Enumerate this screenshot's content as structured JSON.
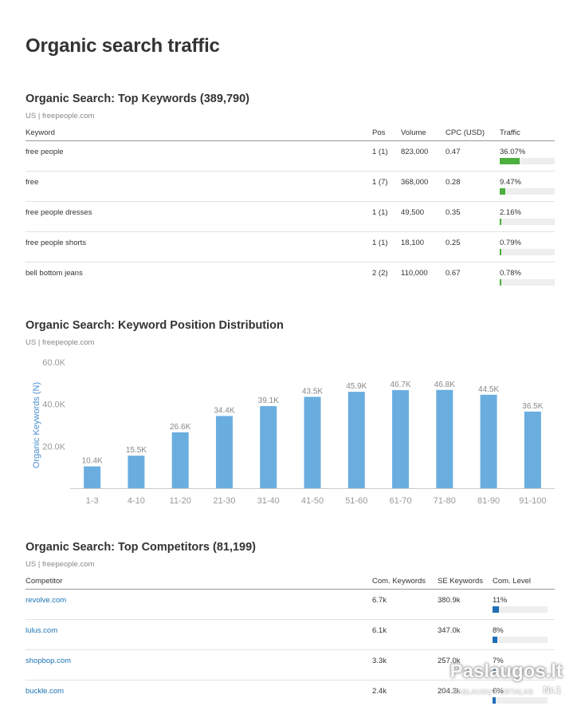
{
  "page_title": "Organic search traffic",
  "keywords": {
    "title": "Organic Search: Top Keywords (389,790)",
    "subtitle": "US | freepeople.com",
    "columns": [
      "Keyword",
      "Pos",
      "Volume",
      "CPC (USD)",
      "Traffic"
    ],
    "bar_color": "#4caf3e",
    "rows": [
      {
        "keyword": "free people",
        "pos": "1 (1)",
        "volume": "823,000",
        "cpc": "0.47",
        "traffic": "36.07%",
        "traffic_value": 36.07
      },
      {
        "keyword": "free",
        "pos": "1 (7)",
        "volume": "368,000",
        "cpc": "0.28",
        "traffic": "9.47%",
        "traffic_value": 9.47
      },
      {
        "keyword": "free people dresses",
        "pos": "1 (1)",
        "volume": "49,500",
        "cpc": "0.35",
        "traffic": "2.16%",
        "traffic_value": 2.16
      },
      {
        "keyword": "free people shorts",
        "pos": "1 (1)",
        "volume": "18,100",
        "cpc": "0.25",
        "traffic": "0.79%",
        "traffic_value": 0.79
      },
      {
        "keyword": "bell bottom jeans",
        "pos": "2 (2)",
        "volume": "110,000",
        "cpc": "0.67",
        "traffic": "0.78%",
        "traffic_value": 0.78
      }
    ]
  },
  "distribution": {
    "title": "Organic Search: Keyword Position Distribution",
    "subtitle": "US | freepeople.com"
  },
  "chart_data": {
    "type": "bar",
    "ylabel": "Organic Keywords (N)",
    "xlabel": "",
    "ylim": [
      0,
      60000
    ],
    "y_ticks": [
      20000,
      40000,
      60000
    ],
    "y_tick_labels": [
      "20.0K",
      "40.0K",
      "60.0K"
    ],
    "grid": false,
    "bar_color": "#6aaee0",
    "categories": [
      "1-3",
      "4-10",
      "11-20",
      "21-30",
      "31-40",
      "41-50",
      "51-60",
      "61-70",
      "71-80",
      "81-90",
      "91-100"
    ],
    "values": [
      10400,
      15500,
      26600,
      34400,
      39100,
      43500,
      45900,
      46700,
      46800,
      44500,
      36500
    ],
    "value_labels": [
      "10.4K",
      "15.5K",
      "26.6K",
      "34.4K",
      "39.1K",
      "43.5K",
      "45.9K",
      "46.7K",
      "46.8K",
      "44.5K",
      "36.5K"
    ]
  },
  "competitors": {
    "title": "Organic Search: Top Competitors (81,199)",
    "subtitle": "US | freepeople.com",
    "columns": [
      "Competitor",
      "Com. Keywords",
      "SE Keywords",
      "Com. Level"
    ],
    "bar_color": "#1f6fb5",
    "rows": [
      {
        "domain": "revolve.com",
        "com_keywords": "6.7k",
        "se_keywords": "380.9k",
        "level": "11%",
        "level_value": 11
      },
      {
        "domain": "lulus.com",
        "com_keywords": "6.1k",
        "se_keywords": "347.0k",
        "level": "8%",
        "level_value": 8
      },
      {
        "domain": "shopbop.com",
        "com_keywords": "3.3k",
        "se_keywords": "257.0k",
        "level": "7%",
        "level_value": 7
      },
      {
        "domain": "buckle.com",
        "com_keywords": "2.4k",
        "se_keywords": "204.2k",
        "level": "6%",
        "level_value": 6
      }
    ]
  },
  "watermark": {
    "main": "Paslaugos.lt",
    "sub": "PASLAUGŲ PORTALAS",
    "nr": "Nr.1"
  }
}
